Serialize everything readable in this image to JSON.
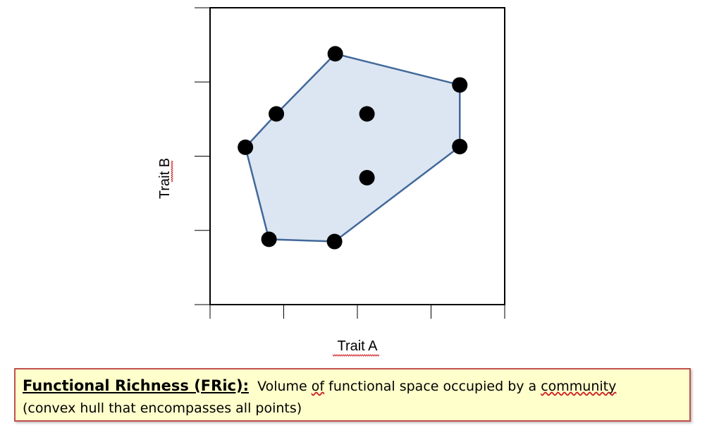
{
  "chart_data": {
    "type": "scatter",
    "x_label": "Trait A",
    "y_label": "Trait B",
    "xlim": [
      0,
      4
    ],
    "ylim": [
      0,
      4
    ],
    "x_ticks": [
      0,
      1,
      2,
      3,
      4
    ],
    "y_ticks": [
      0,
      1,
      2,
      3,
      4
    ],
    "grid": false,
    "points": [
      {
        "x": 1.7,
        "y": 3.38
      },
      {
        "x": 3.39,
        "y": 2.96
      },
      {
        "x": 0.9,
        "y": 2.57
      },
      {
        "x": 2.13,
        "y": 2.57
      },
      {
        "x": 0.48,
        "y": 2.12
      },
      {
        "x": 3.39,
        "y": 2.13
      },
      {
        "x": 2.13,
        "y": 1.71
      },
      {
        "x": 0.8,
        "y": 0.88
      },
      {
        "x": 1.69,
        "y": 0.85
      }
    ],
    "hull_order": [
      0,
      1,
      5,
      8,
      7,
      4,
      2
    ],
    "colors": {
      "hull_fill": "#dce6f2",
      "hull_stroke": "#41689a",
      "point": "#000000"
    }
  },
  "caption": {
    "term": "Functional Richness (FRic):",
    "definition_pre": "Volume ",
    "definition_of": "of",
    "definition_mid": " functional space occupied by a ",
    "definition_community": "community",
    "definition_line2": "(convex hull that encompasses all points)",
    "colors": {
      "background": "#ffffcc",
      "border": "#c0504d"
    }
  }
}
